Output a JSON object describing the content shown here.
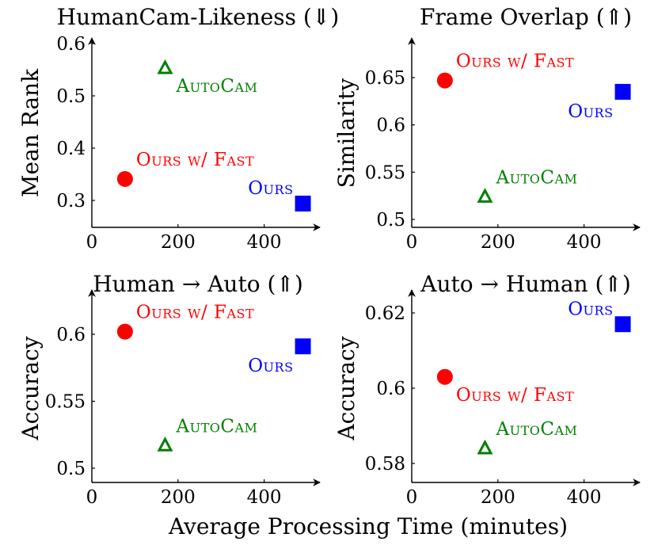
{
  "figure": {
    "xlabel": "Average Processing Time (minutes)"
  },
  "chart_data": [
    {
      "type": "scatter",
      "title": "HumanCam-Likeness (⇓)",
      "ylabel": "Mean Rank",
      "xlim": [
        0,
        500
      ],
      "ylim": [
        0.27,
        0.6
      ],
      "xticks": [
        0,
        200,
        400
      ],
      "yticks": [
        0.3,
        0.4,
        0.5,
        0.6
      ],
      "xtick_labels": [
        "0",
        "200",
        "400"
      ],
      "ytick_labels": [
        "0.3",
        "0.4",
        "0.5",
        "0.6"
      ],
      "points": [
        {
          "label": "AutoCam",
          "x": 170,
          "y": 0.553,
          "color": "#008000",
          "marker": "triangle",
          "label_pos": "below-right"
        },
        {
          "label": "Ours w/ Fast",
          "x": 77,
          "y": 0.341,
          "color": "#ff0000",
          "marker": "circle",
          "label_pos": "above-right"
        },
        {
          "label": "Ours",
          "x": 490,
          "y": 0.294,
          "color": "#0000ff",
          "marker": "square",
          "label_pos": "above-left"
        }
      ]
    },
    {
      "type": "scatter",
      "title": "Frame Overlap (⇑)",
      "ylabel": "Similarity",
      "xlim": [
        0,
        500
      ],
      "ylim": [
        0.49,
        0.69
      ],
      "xticks": [
        0,
        200,
        400
      ],
      "yticks": [
        0.5,
        0.55,
        0.6,
        0.65
      ],
      "xtick_labels": [
        "0",
        "200",
        "400"
      ],
      "ytick_labels": [
        "0.5",
        "0.55",
        "0.6",
        "0.65"
      ],
      "points": [
        {
          "label": "Ours w/ Fast",
          "x": 77,
          "y": 0.647,
          "color": "#ff0000",
          "marker": "circle",
          "label_pos": "above-right"
        },
        {
          "label": "Ours",
          "x": 490,
          "y": 0.635,
          "color": "#0000ff",
          "marker": "square",
          "label_pos": "below-left"
        },
        {
          "label": "AutoCam",
          "x": 170,
          "y": 0.524,
          "color": "#008000",
          "marker": "triangle",
          "label_pos": "above-right"
        }
      ]
    },
    {
      "type": "scatter",
      "title": "Human → Auto (⇑)",
      "ylabel": "Accuracy",
      "xlim": [
        0,
        500
      ],
      "ylim": [
        0.49,
        0.63
      ],
      "xticks": [
        0,
        200,
        400
      ],
      "yticks": [
        0.5,
        0.55,
        0.6
      ],
      "xtick_labels": [
        "0",
        "200",
        "400"
      ],
      "ytick_labels": [
        "0.5",
        "0.55",
        "0.6"
      ],
      "points": [
        {
          "label": "Ours w/ Fast",
          "x": 77,
          "y": 0.602,
          "color": "#ff0000",
          "marker": "circle",
          "label_pos": "above-right"
        },
        {
          "label": "Ours",
          "x": 490,
          "y": 0.591,
          "color": "#0000ff",
          "marker": "square",
          "label_pos": "below-left"
        },
        {
          "label": "AutoCam",
          "x": 170,
          "y": 0.517,
          "color": "#008000",
          "marker": "triangle",
          "label_pos": "above-right"
        }
      ]
    },
    {
      "type": "scatter",
      "title": "Auto → Human (⇑)",
      "ylabel": "Accuracy",
      "xlim": [
        0,
        500
      ],
      "ylim": [
        0.575,
        0.626
      ],
      "xticks": [
        0,
        200,
        400
      ],
      "yticks": [
        0.58,
        0.6,
        0.62
      ],
      "xtick_labels": [
        "0",
        "200",
        "400"
      ],
      "ytick_labels": [
        "0.58",
        "0.6",
        "0.62"
      ],
      "points": [
        {
          "label": "Ours",
          "x": 490,
          "y": 0.617,
          "color": "#0000ff",
          "marker": "square",
          "label_pos": "above-left"
        },
        {
          "label": "Ours w/ Fast",
          "x": 77,
          "y": 0.603,
          "color": "#ff0000",
          "marker": "circle",
          "label_pos": "below-right"
        },
        {
          "label": "AutoCam",
          "x": 170,
          "y": 0.584,
          "color": "#008000",
          "marker": "triangle",
          "label_pos": "above-right"
        }
      ]
    }
  ]
}
